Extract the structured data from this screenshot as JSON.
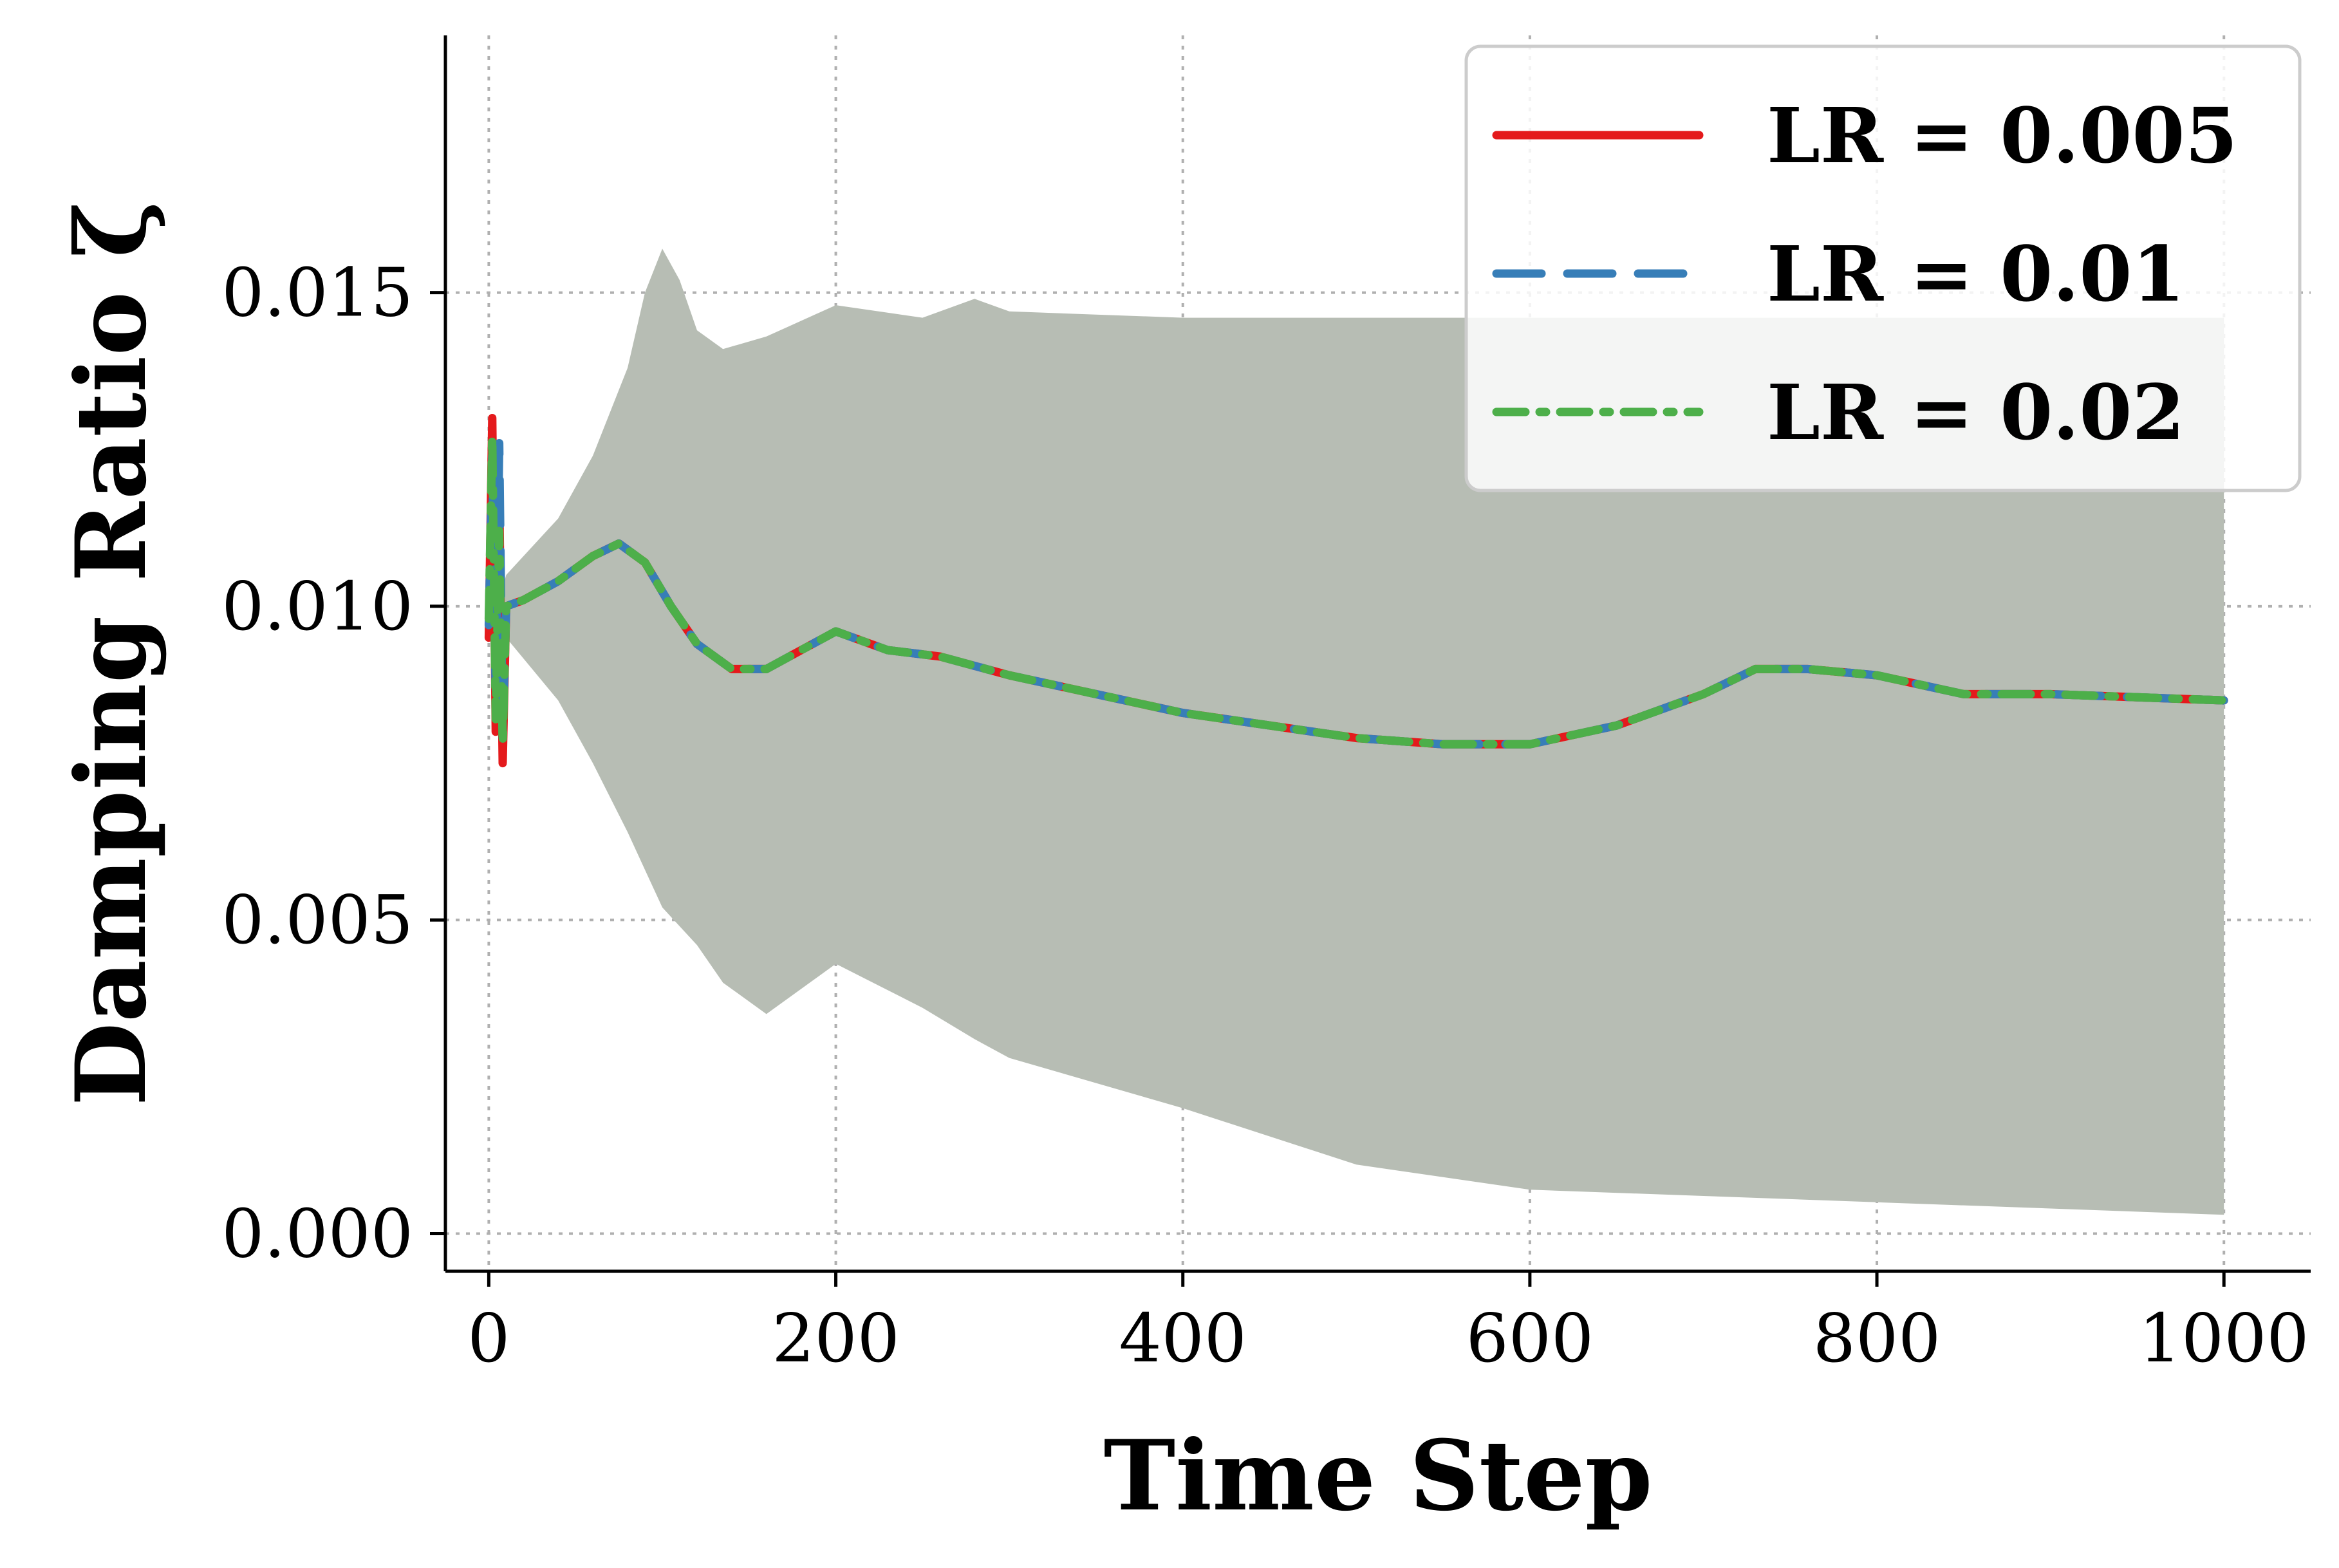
{
  "chart_data": {
    "type": "line",
    "xlabel": "Time Step",
    "ylabel": "Damping Ratio ζ",
    "xlim": [
      -25,
      1050
    ],
    "ylim": [
      -0.0006,
      0.0191
    ],
    "xticks": [
      0,
      200,
      400,
      600,
      800,
      1000
    ],
    "xtick_labels": [
      "0",
      "200",
      "400",
      "600",
      "800",
      "1000"
    ],
    "yticks": [
      0.0,
      0.005,
      0.01,
      0.015
    ],
    "ytick_labels": [
      "0.000",
      "0.005",
      "0.010",
      "0.015"
    ],
    "grid": true,
    "grid_style": "dotted",
    "legend_position": "top-right",
    "band": {
      "color": "#b7bdb4",
      "x": [
        0,
        10,
        40,
        60,
        80,
        90,
        100,
        110,
        120,
        135,
        160,
        200,
        250,
        280,
        300,
        400,
        500,
        600,
        700,
        800,
        900,
        1000
      ],
      "upper": [
        0.0095,
        0.0105,
        0.0114,
        0.0124,
        0.0138,
        0.015,
        0.0157,
        0.0152,
        0.0144,
        0.0141,
        0.0143,
        0.0148,
        0.0146,
        0.0149,
        0.0147,
        0.0146,
        0.0146,
        0.0146,
        0.0146,
        0.0146,
        0.0146,
        0.0146
      ],
      "lower": [
        0.0095,
        0.0095,
        0.0085,
        0.0075,
        0.0064,
        0.0058,
        0.0052,
        0.0049,
        0.0046,
        0.004,
        0.0035,
        0.0043,
        0.0036,
        0.0031,
        0.0028,
        0.002,
        0.0011,
        0.0007,
        0.0006,
        0.0005,
        0.0004,
        0.0003
      ]
    },
    "series": [
      {
        "name": "LR = 0.005",
        "color": "#e41a1c",
        "style": "solid",
        "x": [
          0,
          2,
          4,
          6,
          8,
          10,
          20,
          40,
          60,
          75,
          90,
          105,
          120,
          140,
          160,
          180,
          200,
          230,
          260,
          300,
          350,
          400,
          450,
          500,
          550,
          600,
          650,
          700,
          730,
          760,
          800,
          850,
          900,
          1000
        ],
        "y": [
          0.0095,
          0.013,
          0.008,
          0.0118,
          0.0075,
          0.01,
          0.0101,
          0.0104,
          0.0108,
          0.011,
          0.0107,
          0.01,
          0.0094,
          0.009,
          0.009,
          0.0093,
          0.0096,
          0.0093,
          0.0092,
          0.0089,
          0.0086,
          0.0083,
          0.0081,
          0.0079,
          0.0078,
          0.0078,
          0.0081,
          0.0086,
          0.009,
          0.009,
          0.0089,
          0.0086,
          0.0086,
          0.0085
        ]
      },
      {
        "name": "LR = 0.01",
        "color": "#377eb8",
        "style": "dashed",
        "x": [
          0,
          2,
          4,
          6,
          8,
          10,
          20,
          40,
          60,
          75,
          90,
          105,
          120,
          140,
          160,
          180,
          200,
          230,
          260,
          300,
          350,
          400,
          450,
          500,
          550,
          600,
          650,
          700,
          730,
          760,
          800,
          850,
          900,
          1000
        ],
        "y": [
          0.0097,
          0.0124,
          0.0085,
          0.0126,
          0.0079,
          0.01,
          0.0101,
          0.0104,
          0.0108,
          0.011,
          0.0107,
          0.01,
          0.0094,
          0.009,
          0.009,
          0.0093,
          0.0096,
          0.0093,
          0.0092,
          0.0089,
          0.0086,
          0.0083,
          0.0081,
          0.0079,
          0.0078,
          0.0078,
          0.0081,
          0.0086,
          0.009,
          0.009,
          0.0089,
          0.0086,
          0.0086,
          0.0085
        ]
      },
      {
        "name": "LR = 0.02",
        "color": "#4daf4a",
        "style": "dashdot",
        "x": [
          0,
          2,
          4,
          6,
          8,
          10,
          20,
          40,
          60,
          75,
          90,
          105,
          120,
          140,
          160,
          180,
          200,
          230,
          260,
          300,
          350,
          400,
          450,
          500,
          550,
          600,
          650,
          700,
          730,
          760,
          800,
          850,
          900,
          1000
        ],
        "y": [
          0.0098,
          0.0127,
          0.0082,
          0.0112,
          0.0078,
          0.01,
          0.0101,
          0.0104,
          0.0108,
          0.011,
          0.0107,
          0.01,
          0.0094,
          0.009,
          0.009,
          0.0093,
          0.0096,
          0.0093,
          0.0092,
          0.0089,
          0.0086,
          0.0083,
          0.0081,
          0.0079,
          0.0078,
          0.0078,
          0.0081,
          0.0086,
          0.009,
          0.009,
          0.0089,
          0.0086,
          0.0086,
          0.0085
        ]
      }
    ]
  }
}
